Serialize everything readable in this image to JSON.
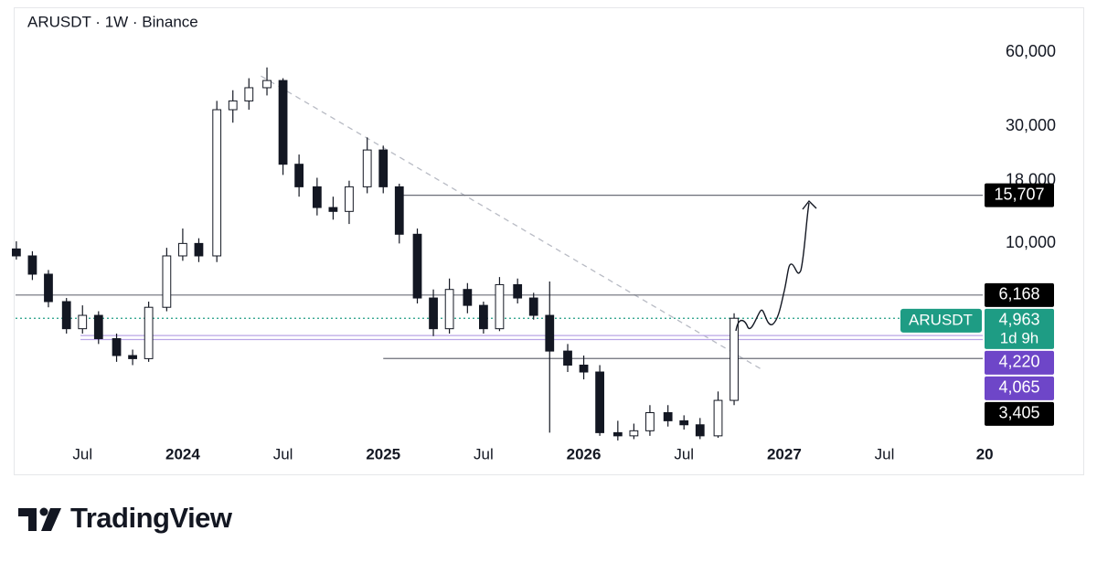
{
  "chart_data": {
    "type": "candlestick",
    "title": "ARUSDT · 1W · Binance",
    "log_scale": true,
    "up_color": "#ffffff",
    "down_color": "#131722",
    "x": [
      2023.17,
      2023.25,
      2023.33,
      2023.42,
      2023.5,
      2023.58,
      2023.67,
      2023.75,
      2023.83,
      2023.92,
      2024.0,
      2024.08,
      2024.17,
      2024.25,
      2024.33,
      2024.42,
      2024.5,
      2024.58,
      2024.67,
      2024.75,
      2024.83,
      2024.92,
      2025.0,
      2025.08,
      2025.17,
      2025.25,
      2025.33,
      2025.42,
      2025.5,
      2025.58,
      2025.67,
      2025.75,
      2025.83,
      2025.92,
      2026.0,
      2026.08,
      2026.17,
      2026.25,
      2026.33,
      2026.42,
      2026.5,
      2026.58,
      2026.67,
      2026.75
    ],
    "open": [
      9500,
      8900,
      7500,
      5800,
      4500,
      5100,
      4100,
      3500,
      3400,
      5500,
      8900,
      10000,
      8900,
      35000,
      38000,
      43000,
      46000,
      21000,
      17000,
      14000,
      13500,
      17000,
      24000,
      17000,
      10900,
      6000,
      4500,
      6500,
      5600,
      4500,
      6800,
      6000,
      5100,
      3650,
      3200,
      3000,
      1700,
      1650,
      1730,
      2050,
      1900,
      1830,
      1650,
      2300
    ],
    "high": [
      10200,
      9300,
      7800,
      6000,
      5600,
      5300,
      4300,
      3700,
      5800,
      9600,
      11500,
      10500,
      38000,
      42000,
      47000,
      52000,
      47000,
      23000,
      18500,
      15500,
      18000,
      27000,
      25000,
      17500,
      11500,
      6500,
      7200,
      6900,
      5800,
      7300,
      7200,
      6300,
      7000,
      3900,
      3500,
      3200,
      1900,
      1850,
      2200,
      2200,
      2000,
      1950,
      2500,
      5200
    ],
    "low": [
      8600,
      7100,
      5500,
      4300,
      4300,
      3900,
      3300,
      3200,
      3300,
      5300,
      8500,
      8400,
      8400,
      31000,
      35000,
      40000,
      19000,
      15500,
      13000,
      12500,
      12000,
      16000,
      16000,
      10000,
      5700,
      4200,
      4300,
      5200,
      4300,
      4400,
      5700,
      4900,
      1700,
      3000,
      2800,
      1650,
      1580,
      1600,
      1650,
      1800,
      1750,
      1600,
      1620,
      2200
    ],
    "close": [
      8900,
      7500,
      5800,
      4500,
      5100,
      4100,
      3500,
      3400,
      5500,
      8900,
      10000,
      8900,
      35000,
      38000,
      43000,
      46000,
      21000,
      17000,
      14000,
      13500,
      17000,
      24000,
      17000,
      10900,
      6000,
      4500,
      6500,
      5600,
      4500,
      6800,
      6000,
      5100,
      3650,
      3200,
      3000,
      1700,
      1650,
      1730,
      2050,
      1900,
      1830,
      1650,
      2300,
      4963
    ],
    "xlim": [
      2023.166,
      2027.99
    ],
    "ylim": [
      1500,
      86000
    ],
    "xticks": [
      {
        "value": 2023.5,
        "label": "Jul"
      },
      2024,
      {
        "value": 2024.5,
        "label": "Jul"
      },
      2025,
      {
        "value": 2025.5,
        "label": "Jul"
      },
      2026,
      {
        "value": 2026.5,
        "label": "Jul"
      },
      2027,
      {
        "value": 2027.5,
        "label": "Jul"
      },
      {
        "value": 2028,
        "label": "20"
      }
    ],
    "yticks": [
      {
        "value": 60000,
        "label": "60,000"
      },
      {
        "value": 30000,
        "label": "30,000"
      },
      {
        "value": 18000,
        "label": "18,000"
      },
      {
        "value": 10000,
        "label": "10,000"
      }
    ],
    "trendline": {
      "x": [
        2024.39,
        2026.88
      ],
      "y": [
        48000,
        3100
      ],
      "color": "#b8bbc4"
    },
    "levels": [
      {
        "value": 15707,
        "label": "15,707",
        "from": 2025.08,
        "color": "#000000",
        "line_color": "#6b6e78"
      },
      {
        "value": 6168,
        "label": "6,168",
        "from": 2023.166,
        "color": "#000000",
        "line_color": "#6b6e78"
      },
      {
        "value": 4963,
        "label": "4,963",
        "from": 2023.166,
        "color": "#1e9c84",
        "line_color": "#1e9c84",
        "line": "dotted",
        "tag": "ARUSDT",
        "countdown": "1d 9h"
      },
      {
        "value": 4220,
        "label": "4,220",
        "from": 2023.49,
        "color": "#6e46c8",
        "line_color": "#b9a6e6"
      },
      {
        "value": 4065,
        "label": "4,065",
        "from": 2023.49,
        "color": "#6e46c8",
        "line_color": "#b9a6e6"
      },
      {
        "value": 3405,
        "label": "3,405",
        "from": 2025.0,
        "color": "#000000",
        "line_color": "#6b6e78"
      }
    ]
  },
  "brand": "TradingView"
}
